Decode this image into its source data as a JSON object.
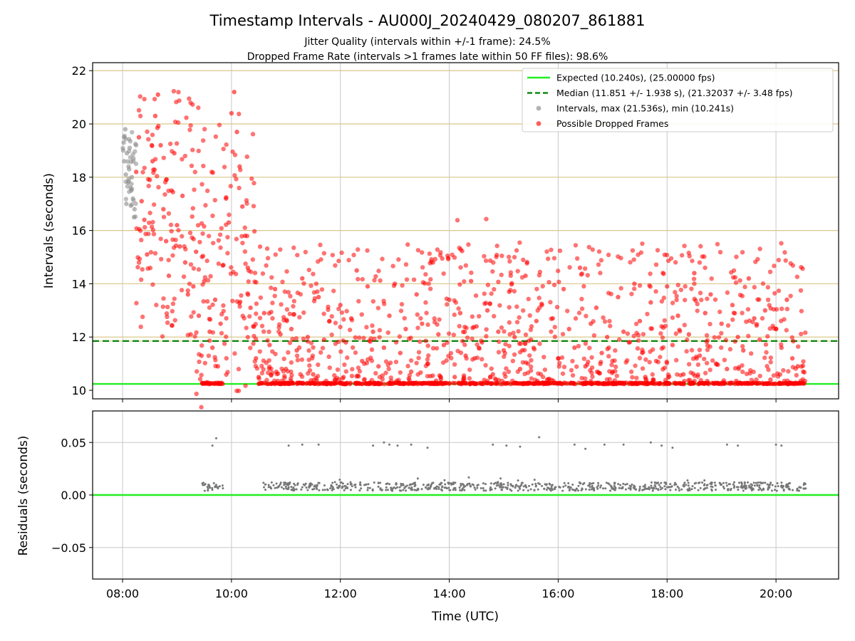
{
  "title": "Timestamp Intervals - AU000J_20240429_080207_861881",
  "subtitle_lines": [
    "Jitter Quality (intervals within +/-1 frame): 24.5%",
    "Dropped Frame Rate (intervals >1 frames late within 50 FF files): 98.6%"
  ],
  "chart_data": [
    {
      "type": "scatter",
      "panel": "top",
      "xlabel": "",
      "ylabel": "Intervals (seconds)",
      "xlim": [
        7.45,
        21.15
      ],
      "ylim": [
        9.68,
        22.3
      ],
      "x_unit": "hours UTC",
      "yticks": [
        10,
        12,
        14,
        16,
        18,
        20,
        22
      ],
      "ytick_labels": [
        "10",
        "12",
        "14",
        "16",
        "18",
        "20",
        "22"
      ],
      "xticks": [
        8,
        10,
        12,
        14,
        16,
        18,
        20
      ],
      "hlines_grid": [
        10.24,
        11.851,
        12,
        14,
        16,
        18,
        20,
        22
      ],
      "grid": true,
      "legend_position": "top-right",
      "legend": [
        {
          "label": "Expected (10.240s), (25.00000 fps)",
          "kind": "solid-line",
          "color": "#22ee22"
        },
        {
          "label": "Median (11.851 +/- 1.938 s), (21.32037 +/- 3.48 fps)",
          "kind": "dashed-line",
          "color": "#118811"
        },
        {
          "label": "Intervals, max (21.536s), min (10.241s)",
          "kind": "marker",
          "color": "#999999"
        },
        {
          "label": "Possible Dropped Frames",
          "kind": "marker",
          "color": "#ff2a2a"
        }
      ],
      "reference_lines": {
        "expected": 10.24,
        "median": 11.851
      },
      "series": [
        {
          "name": "Intervals, max (21.536s), min (10.241s)",
          "color": "#888888",
          "note_points": "normal intervals, sampled",
          "x": [
            8.02,
            8.03,
            8.05,
            8.06,
            8.08,
            8.1,
            8.12,
            8.13,
            8.15,
            8.17,
            8.19,
            8.2,
            8.22,
            8.03,
            8.07,
            8.11,
            8.16,
            8.21
          ],
          "y": [
            19.3,
            18.6,
            19.8,
            18.1,
            18.9,
            17.8,
            18.3,
            19.1,
            17.6,
            18.0,
            17.2,
            18.7,
            16.8,
            19.5,
            17.0,
            18.4,
            17.5,
            16.5
          ]
        },
        {
          "name": "Possible Dropped Frames",
          "color": "#ff0000",
          "note_points": "representative sample of dropped-frame intervals",
          "x": [
            8.25,
            8.3,
            8.35,
            8.4,
            8.45,
            8.5,
            8.55,
            8.6,
            8.65,
            8.7,
            8.75,
            8.8,
            8.85,
            8.9,
            8.95,
            9.0,
            9.05,
            9.1,
            9.15,
            9.2,
            9.25,
            9.3,
            9.35,
            9.4,
            9.45,
            9.5,
            9.55,
            9.6,
            9.65,
            9.7,
            9.75,
            9.8,
            9.85,
            9.9,
            9.95,
            10.0,
            10.05,
            10.1,
            10.15,
            10.2,
            10.25,
            10.3,
            10.35,
            10.4,
            10.45,
            10.5,
            10.6,
            10.7,
            10.8,
            10.9,
            11.0,
            11.1,
            11.2,
            11.3,
            11.4,
            11.5,
            11.6,
            11.7,
            11.8,
            11.9,
            12.0,
            12.1,
            12.2,
            12.3,
            12.4,
            12.5,
            12.6,
            12.7,
            12.8,
            12.9,
            13.0,
            13.1,
            13.2,
            13.3,
            13.4,
            13.5,
            13.6,
            13.7,
            13.8,
            13.9,
            14.0,
            14.1,
            14.2,
            14.3,
            14.4,
            14.5,
            14.6,
            14.7,
            14.8,
            14.9,
            15.0,
            15.1,
            15.2,
            15.3,
            15.4,
            15.5,
            15.6,
            15.7,
            15.8,
            15.9,
            16.0,
            16.1,
            16.2,
            16.3,
            16.4,
            16.5,
            16.6,
            16.7,
            16.8,
            16.9,
            17.0,
            17.1,
            17.2,
            17.3,
            17.4,
            17.5,
            17.6,
            17.7,
            17.8,
            17.9,
            18.0,
            18.1,
            18.2,
            18.3,
            18.4,
            18.5,
            18.6,
            18.7,
            18.8,
            18.9,
            19.0,
            19.1,
            19.2,
            19.3,
            19.4,
            19.5,
            19.6,
            19.7,
            19.8,
            19.9,
            20.0,
            20.1,
            20.2,
            20.3,
            20.4,
            20.5
          ],
          "y": [
            18.2,
            19.5,
            17.1,
            16.4,
            15.1,
            17.9,
            18.6,
            20.3,
            21.1,
            19.2,
            16.8,
            15.6,
            14.3,
            17.5,
            18.9,
            16.2,
            15.4,
            17.3,
            14.8,
            13.6,
            12.1,
            13.9,
            15.2,
            12.8,
            11.3,
            14.1,
            10.3,
            12.2,
            11.6,
            13.4,
            10.9,
            12.5,
            14.7,
            17.2,
            16.3,
            20.4,
            21.2,
            19.7,
            18.4,
            16.9,
            15.8,
            14.6,
            13.1,
            12.4,
            11.2,
            10.5,
            12.9,
            11.7,
            13.8,
            12.1,
            10.8,
            12.3,
            11.5,
            14.2,
            12.0,
            10.6,
            13.5,
            11.9,
            12.6,
            10.4,
            13.2,
            11.8,
            12.7,
            14.5,
            11.1,
            13.9,
            12.2,
            10.9,
            11.6,
            12.8,
            14.0,
            11.4,
            12.3,
            10.7,
            13.6,
            12.5,
            11.0,
            14.8,
            12.1,
            11.7,
            13.4,
            10.5,
            12.9,
            11.3,
            14.1,
            12.4,
            11.8,
            13.0,
            10.6,
            12.2,
            11.5,
            13.7,
            12.0,
            10.8,
            14.3,
            11.9,
            12.6,
            13.2,
            10.4,
            12.7,
            11.2,
            13.8,
            12.3,
            11.6,
            14.6,
            10.9,
            12.5,
            13.1,
            11.4,
            12.0,
            10.7,
            13.5,
            12.2,
            11.8,
            14.0,
            12.6,
            10.5,
            13.3,
            11.1,
            12.4,
            13.9,
            11.7,
            12.8,
            10.6,
            12.1,
            14.4,
            11.3,
            12.9,
            13.6,
            11.0,
            12.5,
            10.8,
            13.2,
            12.0,
            11.5,
            14.2,
            12.7,
            11.9,
            13.0,
            10.4,
            12.3,
            11.6,
            13.4,
            11.2,
            10.9,
            10.7
          ]
        },
        {
          "name": "Possible Dropped Frames (baseline)",
          "color": "#ff0000",
          "note_points": "dense band near expected interval",
          "x_range": [
            9.45,
            20.55
          ],
          "y": 10.26
        }
      ]
    },
    {
      "type": "scatter",
      "panel": "bottom",
      "xlabel": "Time (UTC)",
      "ylabel": "Residuals (seconds)",
      "xlim": [
        7.45,
        21.15
      ],
      "ylim": [
        -0.08,
        0.08
      ],
      "yticks": [
        -0.05,
        0.0,
        0.05
      ],
      "ytick_labels": [
        "−0.05",
        "0.00",
        "0.05"
      ],
      "xticks": [
        8,
        10,
        12,
        14,
        16,
        18,
        20
      ],
      "xtick_labels": [
        "08:00",
        "10:00",
        "12:00",
        "14:00",
        "16:00",
        "18:00",
        "20:00"
      ],
      "grid": true,
      "reference_lines": {
        "zero": 0.0
      },
      "series": [
        {
          "name": "",
          "color": "#777777",
          "note_points": "residual band ~0.008 s with outliers ~0.05 s",
          "band_y": 0.008,
          "band_x_segments": [
            [
              9.45,
              9.85
            ],
            [
              10.5,
              20.55
            ]
          ],
          "outliers_x": [
            9.65,
            9.72,
            11.05,
            11.3,
            11.6,
            12.6,
            12.8,
            12.9,
            13.05,
            13.3,
            13.6,
            14.8,
            15.05,
            15.3,
            15.65,
            16.3,
            16.5,
            16.85,
            17.2,
            17.7,
            17.9,
            18.1,
            19.1,
            19.3,
            20.0,
            20.1
          ],
          "outliers_y": [
            0.047,
            0.054,
            0.047,
            0.048,
            0.048,
            0.047,
            0.05,
            0.048,
            0.047,
            0.048,
            0.045,
            0.048,
            0.047,
            0.046,
            0.055,
            0.048,
            0.044,
            0.048,
            0.048,
            0.05,
            0.047,
            0.045,
            0.048,
            0.047,
            0.048,
            0.047
          ]
        }
      ]
    }
  ]
}
